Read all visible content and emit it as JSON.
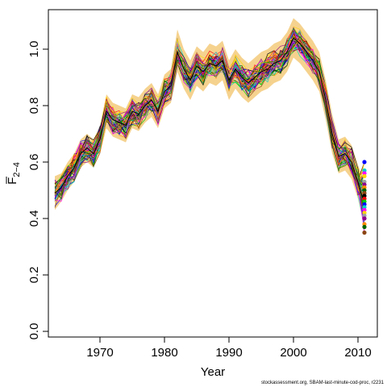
{
  "chart_data": {
    "type": "line",
    "xlabel": "Year",
    "ylabel_main": "F",
    "ylabel_sub": "2−4",
    "credit": "stockassessment.org, SBAM-last-minute-cod-proc, r2231",
    "xlim": [
      1962,
      2013
    ],
    "ylim": [
      -0.02,
      1.14
    ],
    "x_ticks": [
      1970,
      1980,
      1990,
      2000,
      2010
    ],
    "y_ticks": [
      "0.0",
      "0.2",
      "0.4",
      "0.6",
      "0.8",
      "1.0"
    ],
    "years": [
      1963,
      1964,
      1965,
      1966,
      1967,
      1968,
      1969,
      1970,
      1971,
      1972,
      1973,
      1974,
      1975,
      1976,
      1977,
      1978,
      1979,
      1980,
      1981,
      1982,
      1983,
      1984,
      1985,
      1986,
      1987,
      1988,
      1989,
      1990,
      1991,
      1992,
      1993,
      1994,
      1995,
      1996,
      1997,
      1998,
      1999,
      2000,
      2001,
      2002,
      2003,
      2004,
      2005,
      2006,
      2007,
      2008,
      2009,
      2010,
      2011
    ],
    "central_series": {
      "name": "",
      "values": [
        0.49,
        0.51,
        0.55,
        0.58,
        0.63,
        0.65,
        0.63,
        0.68,
        0.78,
        0.75,
        0.74,
        0.73,
        0.78,
        0.77,
        0.8,
        0.82,
        0.78,
        0.85,
        0.87,
        0.99,
        0.93,
        0.89,
        0.94,
        0.92,
        0.95,
        0.94,
        0.96,
        0.89,
        0.93,
        0.9,
        0.88,
        0.9,
        0.92,
        0.93,
        0.95,
        0.96,
        0.99,
        1.04,
        1.02,
        0.99,
        0.96,
        0.92,
        0.82,
        0.7,
        0.62,
        0.63,
        0.6,
        0.53,
        0.45
      ]
    },
    "band": {
      "lower": [
        0.43,
        0.46,
        0.5,
        0.53,
        0.58,
        0.6,
        0.58,
        0.63,
        0.72,
        0.69,
        0.68,
        0.67,
        0.72,
        0.71,
        0.74,
        0.76,
        0.72,
        0.79,
        0.81,
        0.92,
        0.86,
        0.82,
        0.87,
        0.85,
        0.88,
        0.87,
        0.89,
        0.82,
        0.86,
        0.83,
        0.81,
        0.83,
        0.85,
        0.86,
        0.88,
        0.89,
        0.92,
        0.97,
        0.95,
        0.92,
        0.89,
        0.85,
        0.75,
        0.63,
        0.56,
        0.57,
        0.54,
        0.47,
        0.37
      ],
      "upper": [
        0.55,
        0.56,
        0.6,
        0.63,
        0.68,
        0.7,
        0.68,
        0.73,
        0.84,
        0.81,
        0.8,
        0.79,
        0.84,
        0.83,
        0.86,
        0.88,
        0.84,
        0.91,
        0.93,
        1.07,
        1.0,
        0.96,
        1.01,
        0.99,
        1.02,
        1.01,
        1.03,
        0.96,
        1.0,
        0.97,
        0.95,
        0.97,
        0.99,
        1.0,
        1.02,
        1.03,
        1.06,
        1.11,
        1.09,
        1.06,
        1.03,
        0.99,
        0.89,
        0.77,
        0.68,
        0.69,
        0.66,
        0.59,
        0.53
      ]
    },
    "replicate_endpoints_2011": [
      0.6,
      0.57,
      0.56,
      0.55,
      0.53,
      0.52,
      0.51,
      0.5,
      0.49,
      0.48,
      0.47,
      0.46,
      0.45,
      0.44,
      0.43,
      0.42,
      0.41,
      0.4,
      0.38,
      0.37,
      0.35
    ],
    "colors": {
      "band": "#f5d28e",
      "replicates": [
        "#000000",
        "#ff0000",
        "#00cd00",
        "#0000ff",
        "#00cdcd",
        "#ff00ff",
        "#ffd700",
        "#a0a0a0",
        "#8b008b",
        "#ff8c00",
        "#006400",
        "#8b4513"
      ]
    }
  }
}
